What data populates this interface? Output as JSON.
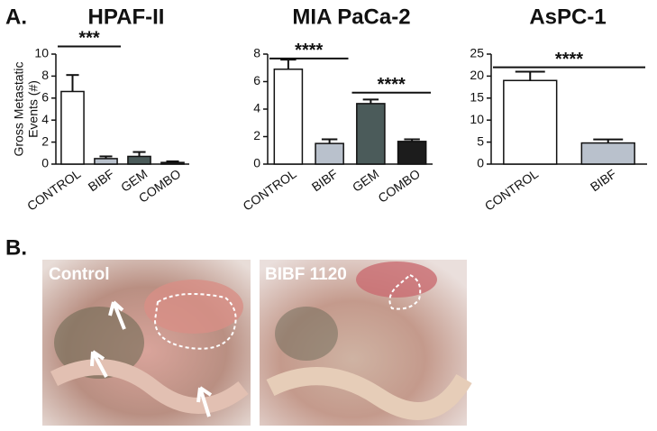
{
  "panel_labels": [
    "A.",
    "B."
  ],
  "chart_data": [
    {
      "type": "bar",
      "title": "HPAF-II",
      "ylabel": [
        "Gross Metastatic",
        "Events (#)"
      ],
      "categories": [
        "CONTROL",
        "BIBF",
        "GEM",
        "COMBO"
      ],
      "values": [
        6.6,
        0.5,
        0.7,
        0.15
      ],
      "errors": [
        1.5,
        0.2,
        0.4,
        0.1
      ],
      "colors": [
        "#ffffff",
        "#b9c1cc",
        "#4b5b5a",
        "#1c1c1c"
      ],
      "ylim": [
        0,
        10
      ],
      "yticks": [
        0,
        2,
        4,
        6,
        8,
        10
      ],
      "annotations": [
        "***"
      ]
    },
    {
      "type": "bar",
      "title": "MIA PaCa-2",
      "categories": [
        "CONTROL",
        "BIBF",
        "GEM",
        "COMBO"
      ],
      "values": [
        6.9,
        1.5,
        4.4,
        1.65
      ],
      "errors": [
        0.7,
        0.3,
        0.3,
        0.15
      ],
      "colors": [
        "#ffffff",
        "#b9c1cc",
        "#4b5b5a",
        "#1c1c1c"
      ],
      "ylim": [
        0,
        8
      ],
      "yticks": [
        0,
        2,
        4,
        6,
        8
      ],
      "annotations": [
        "****",
        "****"
      ]
    },
    {
      "type": "bar",
      "title": "AsPC-1",
      "categories": [
        "CONTROL",
        "BIBF"
      ],
      "values": [
        19,
        4.8
      ],
      "errors": [
        2,
        0.8
      ],
      "colors": [
        "#ffffff",
        "#b9c1cc"
      ],
      "ylim": [
        0,
        25
      ],
      "yticks": [
        0,
        5,
        10,
        15,
        20,
        25
      ],
      "annotations": [
        "****"
      ]
    }
  ],
  "photos": [
    "Control",
    "BIBF 1120"
  ]
}
